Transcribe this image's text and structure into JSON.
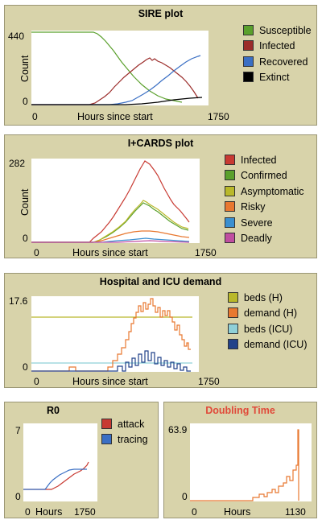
{
  "plots": {
    "sire": {
      "title": "SIRE plot",
      "ylabel": "Count",
      "xlabel": "Hours since start",
      "ymax": "440",
      "ymin": "0",
      "xmin": "0",
      "xmax": "1750",
      "legend": [
        {
          "label": "Susceptible",
          "color": "#5aa02c"
        },
        {
          "label": "Infected",
          "color": "#9b2c2a"
        },
        {
          "label": "Recovered",
          "color": "#3a6fc4"
        },
        {
          "label": "Extinct",
          "color": "#000000"
        }
      ]
    },
    "icards": {
      "title": "I+CARDS plot",
      "ylabel": "Count",
      "xlabel": "Hours since start",
      "ymax": "282",
      "ymin": "0",
      "xmin": "0",
      "xmax": "1750",
      "legend": [
        {
          "label": "Infected",
          "color": "#c83a32"
        },
        {
          "label": "Confirmed",
          "color": "#5aa02c"
        },
        {
          "label": "Asymptomatic",
          "color": "#b9b82a"
        },
        {
          "label": "Risky",
          "color": "#e87830"
        },
        {
          "label": "Severe",
          "color": "#3a8fd0"
        },
        {
          "label": "Deadly",
          "color": "#c04ea0"
        }
      ]
    },
    "hospital": {
      "title": "Hospital and ICU demand",
      "xlabel": "Hours since start",
      "ymax": "17.6",
      "ymin": "0",
      "xmin": "0",
      "xmax": "1750",
      "legend": [
        {
          "label": "beds (H)",
          "color": "#b9b82a"
        },
        {
          "label": "demand (H)",
          "color": "#e87830"
        },
        {
          "label": "beds (ICU)",
          "color": "#8fd0d8"
        },
        {
          "label": "demand (ICU)",
          "color": "#22428a"
        }
      ]
    },
    "r0": {
      "title": "R0",
      "xlabel": "Hours",
      "ymax": "7",
      "ymin": "0",
      "xmin": "0",
      "xmax": "1750",
      "legend": [
        {
          "label": "attack",
          "color": "#c83a32"
        },
        {
          "label": "tracing",
          "color": "#3a6fc4"
        }
      ]
    },
    "doubling": {
      "title": "Doubling Time",
      "title_color": "#e04a3a",
      "xlabel": "Hours",
      "ymax": "63.9",
      "ymin": "0",
      "xmin": "0",
      "xmax": "1130"
    }
  }
}
